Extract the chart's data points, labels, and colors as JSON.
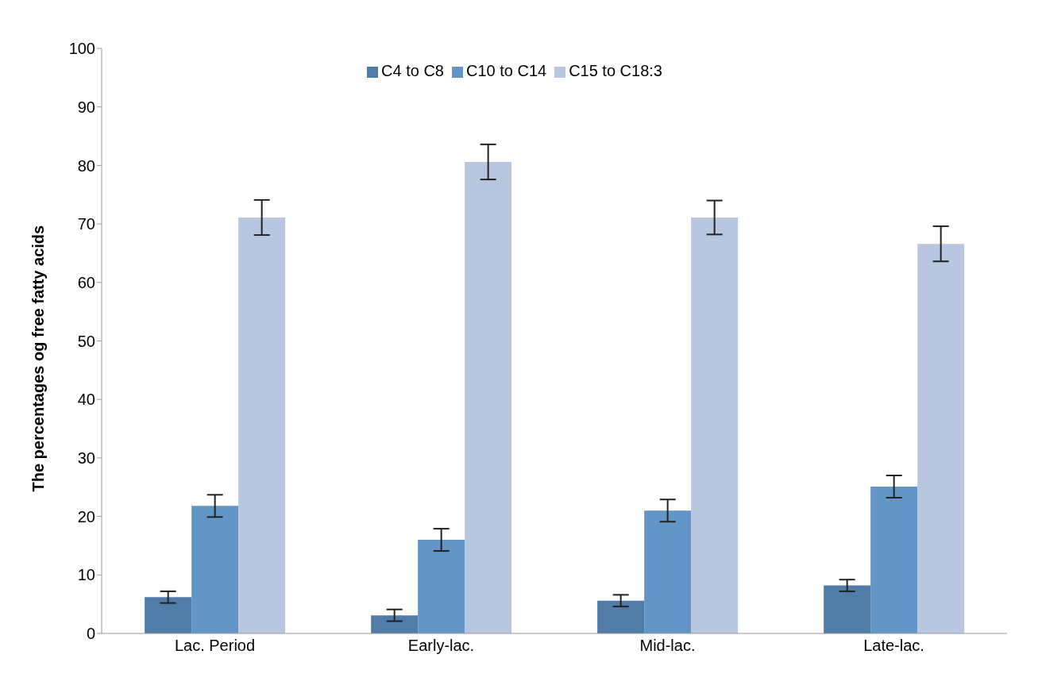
{
  "chart_data": {
    "type": "bar",
    "ylabel": "The percentages og free fatty acids",
    "categories": [
      "Lac. Period",
      "Early-lac.",
      "Mid-lac.",
      "Late-lac."
    ],
    "series": [
      {
        "name": "C4 to C8",
        "color": "#527ca8",
        "values": [
          6.2,
          3.1,
          5.6,
          8.2
        ],
        "errors": [
          1.0,
          1.0,
          1.0,
          1.0
        ]
      },
      {
        "name": "C10 to C14",
        "color": "#6396c6",
        "values": [
          21.8,
          16.0,
          21.0,
          25.1
        ],
        "errors": [
          1.9,
          1.9,
          1.9,
          1.9
        ]
      },
      {
        "name": "C15 to C18:3",
        "color": "#b8c7df",
        "values": [
          71.1,
          80.6,
          71.1,
          66.6
        ],
        "errors": [
          3.0,
          3.0,
          2.9,
          3.0
        ]
      }
    ],
    "ylim": [
      0,
      100
    ],
    "yticks": [
      0,
      10,
      20,
      30,
      40,
      50,
      60,
      70,
      80,
      90,
      100
    ],
    "grid": false,
    "legend": "top"
  }
}
